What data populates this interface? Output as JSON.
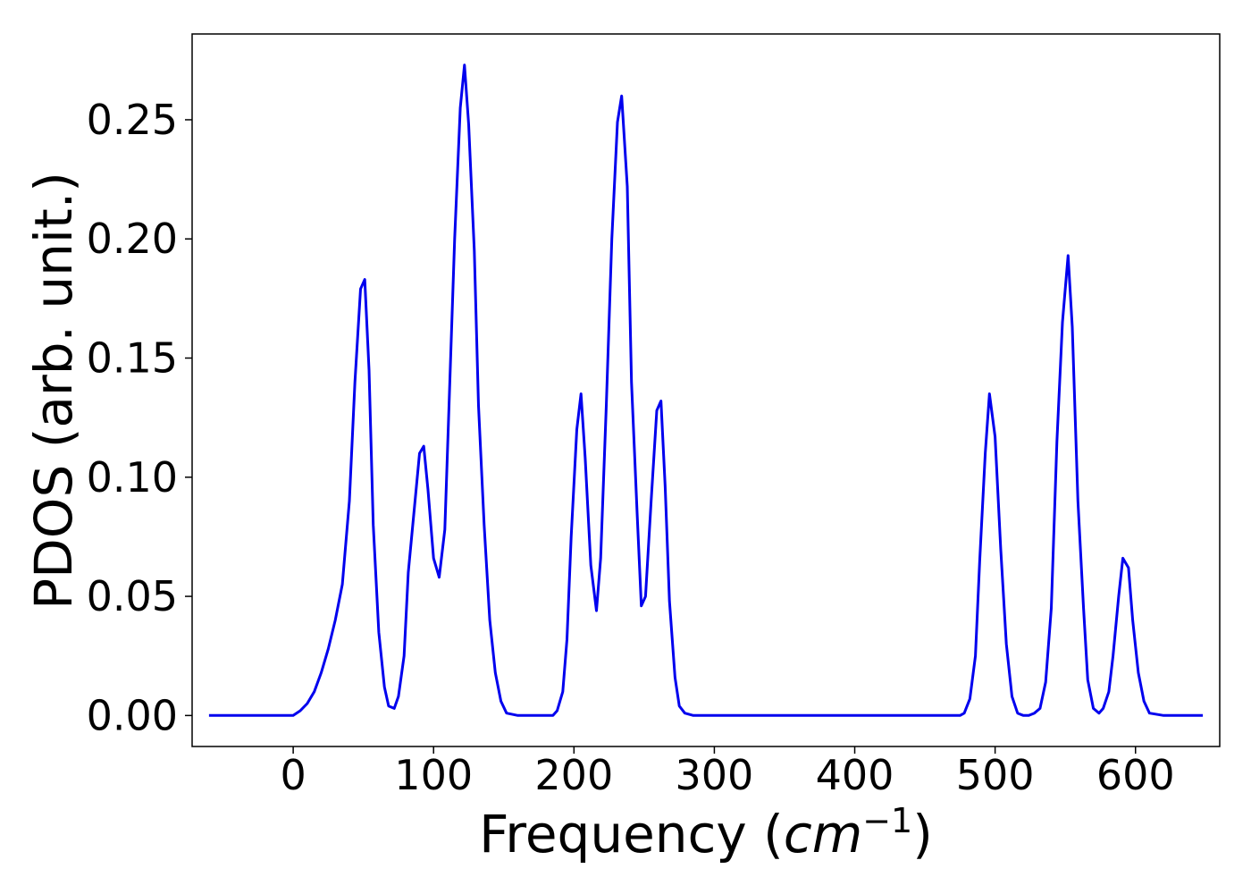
{
  "chart_data": {
    "type": "line",
    "title": "",
    "xlabel": "Frequency (cm⁻¹)",
    "xlabel_parts": {
      "prefix": "Frequency (",
      "var": "cm",
      "sup": "−1",
      "suffix": ")"
    },
    "ylabel": "PDOS (arb. unit.)",
    "xlim": [
      -72,
      660
    ],
    "ylim": [
      -0.013,
      0.286
    ],
    "x_ticks": [
      0,
      100,
      200,
      300,
      400,
      500,
      600
    ],
    "x_tick_labels": [
      "0",
      "100",
      "200",
      "300",
      "400",
      "500",
      "600"
    ],
    "y_ticks": [
      0.0,
      0.05,
      0.1,
      0.15,
      0.2,
      0.25
    ],
    "y_tick_labels": [
      "0.00",
      "0.05",
      "0.10",
      "0.15",
      "0.20",
      "0.25"
    ],
    "grid": false,
    "legend": "none",
    "line_color": "#0000ee",
    "series": [
      {
        "x": [
          -60,
          0,
          5,
          10,
          15,
          20,
          25,
          30,
          35,
          40,
          44,
          48,
          51,
          54,
          57,
          61,
          65,
          68,
          72,
          75,
          79,
          82,
          86,
          90,
          93,
          96,
          100,
          104,
          108,
          111,
          115,
          119,
          122,
          125,
          129,
          132,
          136,
          140,
          144,
          148,
          152,
          160,
          185,
          188,
          192,
          195,
          198,
          202,
          205,
          208,
          212,
          216,
          219,
          223,
          227,
          231,
          234,
          238,
          241,
          245,
          248,
          251,
          255,
          259,
          262,
          265,
          268,
          272,
          275,
          279,
          285,
          475,
          478,
          482,
          486,
          489,
          493,
          496,
          500,
          504,
          508,
          512,
          516,
          520,
          524,
          528,
          532,
          536,
          540,
          544,
          548,
          552,
          555,
          559,
          563,
          566,
          570,
          574,
          577,
          581,
          584,
          588,
          591,
          595,
          598,
          602,
          606,
          610,
          620,
          648
        ],
        "y": [
          0.0,
          0.0,
          0.002,
          0.005,
          0.01,
          0.018,
          0.028,
          0.04,
          0.055,
          0.09,
          0.14,
          0.179,
          0.183,
          0.145,
          0.08,
          0.035,
          0.012,
          0.004,
          0.003,
          0.008,
          0.025,
          0.06,
          0.085,
          0.11,
          0.113,
          0.095,
          0.066,
          0.058,
          0.078,
          0.13,
          0.2,
          0.255,
          0.273,
          0.248,
          0.195,
          0.13,
          0.08,
          0.04,
          0.018,
          0.006,
          0.001,
          0.0,
          0.0,
          0.002,
          0.01,
          0.032,
          0.075,
          0.12,
          0.135,
          0.108,
          0.063,
          0.044,
          0.066,
          0.13,
          0.2,
          0.249,
          0.26,
          0.222,
          0.14,
          0.085,
          0.046,
          0.05,
          0.09,
          0.128,
          0.132,
          0.096,
          0.048,
          0.016,
          0.004,
          0.001,
          0.0,
          0.0,
          0.001,
          0.007,
          0.025,
          0.065,
          0.11,
          0.135,
          0.117,
          0.07,
          0.03,
          0.008,
          0.001,
          0.0,
          0.0,
          0.001,
          0.003,
          0.014,
          0.045,
          0.115,
          0.165,
          0.193,
          0.163,
          0.09,
          0.045,
          0.015,
          0.003,
          0.001,
          0.003,
          0.01,
          0.025,
          0.05,
          0.066,
          0.062,
          0.04,
          0.018,
          0.006,
          0.001,
          0.0,
          0.0
        ]
      }
    ]
  }
}
